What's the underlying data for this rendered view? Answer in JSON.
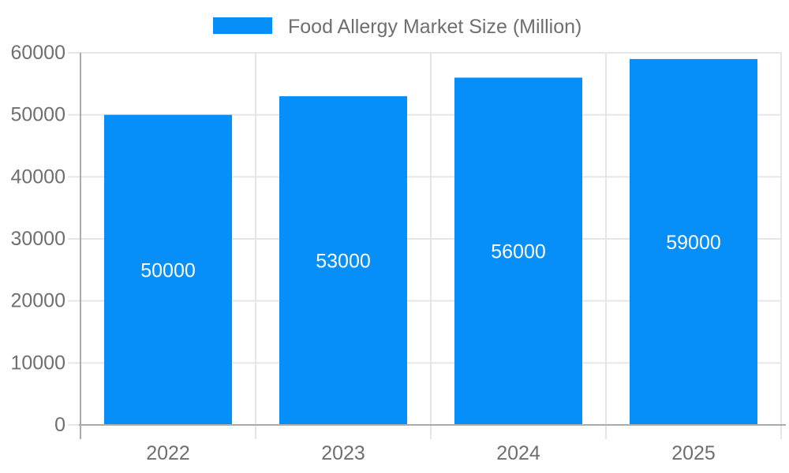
{
  "chart_data": {
    "type": "bar",
    "title": "Food Allergy Market Size (Million)",
    "categories": [
      "2022",
      "2023",
      "2024",
      "2025"
    ],
    "values": [
      50000,
      53000,
      56000,
      59000
    ],
    "bar_labels": [
      "50000",
      "53000",
      "56000",
      "59000"
    ],
    "y_ticks": [
      "0",
      "10000",
      "20000",
      "30000",
      "40000",
      "50000",
      "60000"
    ],
    "y_tick_values": [
      0,
      10000,
      20000,
      30000,
      40000,
      50000,
      60000
    ],
    "ylim": [
      0,
      60000
    ],
    "xlabel": "",
    "ylabel": "",
    "grid": true,
    "legend_position": "top-center",
    "colors": {
      "bar": "#068ff8",
      "grid": "#e6e6e6",
      "axis": "#ababab",
      "text": "#6f6f6f",
      "bar_label": "#ffffff",
      "background": "#ffffff"
    }
  }
}
